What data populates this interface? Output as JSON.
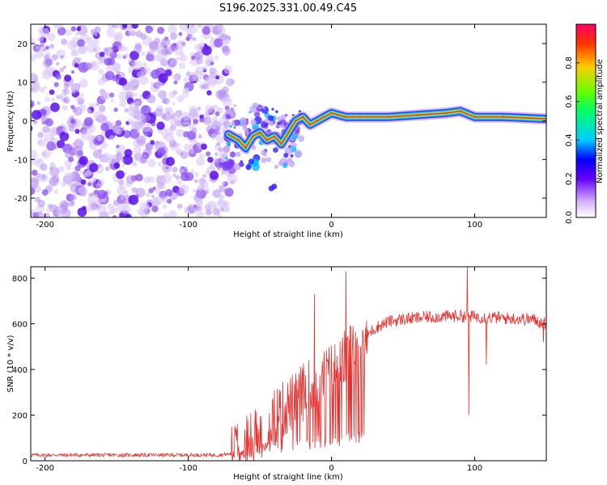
{
  "title": "S196.2025.331.00.49.C45",
  "spectrogram": {
    "type": "heatmap",
    "xlabel": "Height of straight line (km)",
    "ylabel": "Frequency (Hz)",
    "xlim": [
      -210,
      150
    ],
    "ylim": [
      -25,
      25
    ],
    "xticks": [
      -200,
      -100,
      0,
      100
    ],
    "yticks": [
      -20,
      -10,
      0,
      10,
      20
    ],
    "xtick_labels": [
      "-200",
      "-100",
      "0",
      "100"
    ],
    "ytick_labels": [
      "-20",
      "-10",
      "0",
      "10",
      "20"
    ],
    "noise_region_x": [
      -210,
      -70
    ],
    "ridge": [
      {
        "x": -72,
        "f": -3.5
      },
      {
        "x": -65,
        "f": -5
      },
      {
        "x": -60,
        "f": -7
      },
      {
        "x": -55,
        "f": -4
      },
      {
        "x": -50,
        "f": -3
      },
      {
        "x": -45,
        "f": -5
      },
      {
        "x": -40,
        "f": -4
      },
      {
        "x": -35,
        "f": -6
      },
      {
        "x": -30,
        "f": -3
      },
      {
        "x": -25,
        "f": 0
      },
      {
        "x": -20,
        "f": 1
      },
      {
        "x": -15,
        "f": -1
      },
      {
        "x": -10,
        "f": 0
      },
      {
        "x": -5,
        "f": 1
      },
      {
        "x": 0,
        "f": 2
      },
      {
        "x": 10,
        "f": 1
      },
      {
        "x": 20,
        "f": 1
      },
      {
        "x": 40,
        "f": 1
      },
      {
        "x": 60,
        "f": 1.5
      },
      {
        "x": 80,
        "f": 2
      },
      {
        "x": 90,
        "f": 2.5
      },
      {
        "x": 100,
        "f": 1
      },
      {
        "x": 120,
        "f": 1
      },
      {
        "x": 150,
        "f": 0.5
      }
    ],
    "colorbar": {
      "label": "Normalized spectral amplitude",
      "range": [
        0,
        1
      ],
      "ticks": [
        0.0,
        0.2,
        0.4,
        0.6,
        0.8
      ],
      "tick_labels": [
        "0.0",
        "0.2",
        "0.4",
        "0.6",
        "0.8"
      ],
      "colors": [
        "#ffffff",
        "#9933ff",
        "#3300ff",
        "#00ccff",
        "#00ff66",
        "#66ff00",
        "#ffcc00",
        "#ff3300",
        "#ff0066"
      ]
    }
  },
  "snr": {
    "type": "line",
    "xlabel": "Height of straight line (km)",
    "ylabel": "SNR (10 * v/v)",
    "xlim": [
      -210,
      150
    ],
    "ylim": [
      0,
      850
    ],
    "xticks": [
      -200,
      -100,
      0,
      100
    ],
    "yticks": [
      0,
      200,
      400,
      600,
      800
    ],
    "xtick_labels": [
      "-200",
      "-100",
      "0",
      "100"
    ],
    "ytick_labels": [
      "0",
      "200",
      "400",
      "600",
      "800"
    ],
    "color": "#e8312e",
    "envelope": [
      {
        "x": -210,
        "y": 25
      },
      {
        "x": -80,
        "y": 25
      },
      {
        "x": -70,
        "y": 30
      },
      {
        "x": -60,
        "y": 80
      },
      {
        "x": -50,
        "y": 130
      },
      {
        "x": -40,
        "y": 190
      },
      {
        "x": -30,
        "y": 240
      },
      {
        "x": -20,
        "y": 300
      },
      {
        "x": -10,
        "y": 340
      },
      {
        "x": 0,
        "y": 390
      },
      {
        "x": 10,
        "y": 450
      },
      {
        "x": 20,
        "y": 520
      },
      {
        "x": 30,
        "y": 580
      },
      {
        "x": 40,
        "y": 610
      },
      {
        "x": 50,
        "y": 620
      },
      {
        "x": 70,
        "y": 630
      },
      {
        "x": 90,
        "y": 635
      },
      {
        "x": 120,
        "y": 625
      },
      {
        "x": 140,
        "y": 620
      },
      {
        "x": 150,
        "y": 600
      }
    ],
    "spikes": [
      {
        "x": -12,
        "y": 730
      },
      {
        "x": 10,
        "y": 830
      },
      {
        "x": 95,
        "y": 850
      },
      {
        "x": 96,
        "y": 200
      },
      {
        "x": 108,
        "y": 420
      },
      {
        "x": 148,
        "y": 520
      }
    ]
  }
}
